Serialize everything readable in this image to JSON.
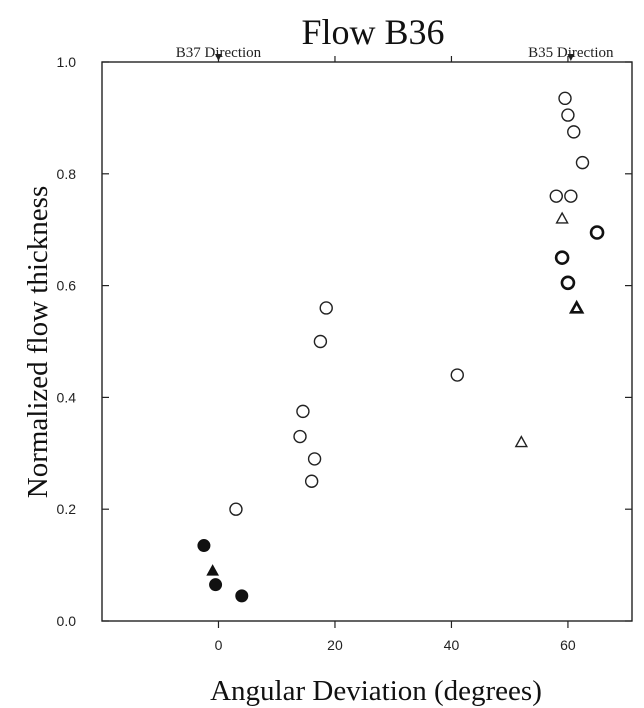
{
  "chart_data": {
    "type": "scatter",
    "title": "Flow B36",
    "xlabel": "Angular Deviation (degrees)",
    "ylabel": "Normalized flow thickness",
    "xlim": [
      -20,
      71
    ],
    "ylim": [
      0,
      1
    ],
    "xticks": [
      0,
      20,
      40,
      60
    ],
    "xtick_labels": [
      "0",
      "20",
      "40",
      "60"
    ],
    "yticks": [
      0,
      0.2,
      0.4,
      0.6,
      0.8,
      1.0
    ],
    "ytick_labels": [
      "0.0",
      "0.2",
      "0.4",
      "0.6",
      "0.8",
      "1.0"
    ],
    "grid": false,
    "annotations": [
      {
        "text": "B37 Direction",
        "x": 0
      },
      {
        "text": "B35 Direction",
        "x": 60.5
      }
    ],
    "series": [
      {
        "marker": "open-circle",
        "x": [
          3,
          14,
          14.5,
          16,
          16.5,
          17.5,
          18.5,
          41,
          58,
          59.5,
          60,
          60.5,
          61,
          62.5
        ],
        "y": [
          0.2,
          0.33,
          0.375,
          0.25,
          0.29,
          0.5,
          0.56,
          0.44,
          0.76,
          0.935,
          0.905,
          0.76,
          0.875,
          0.82
        ]
      },
      {
        "marker": "bold-open-circle",
        "x": [
          59,
          60,
          65
        ],
        "y": [
          0.65,
          0.605,
          0.695
        ]
      },
      {
        "marker": "open-triangle",
        "x": [
          52,
          59
        ],
        "y": [
          0.32,
          0.72
        ]
      },
      {
        "marker": "bold-open-triangle",
        "x": [
          61.5
        ],
        "y": [
          0.56
        ]
      },
      {
        "marker": "filled-circle",
        "x": [
          -2.5,
          -0.5,
          4
        ],
        "y": [
          0.135,
          0.065,
          0.045
        ]
      },
      {
        "marker": "filled-triangle",
        "x": [
          -1
        ],
        "y": [
          0.09
        ]
      }
    ]
  }
}
